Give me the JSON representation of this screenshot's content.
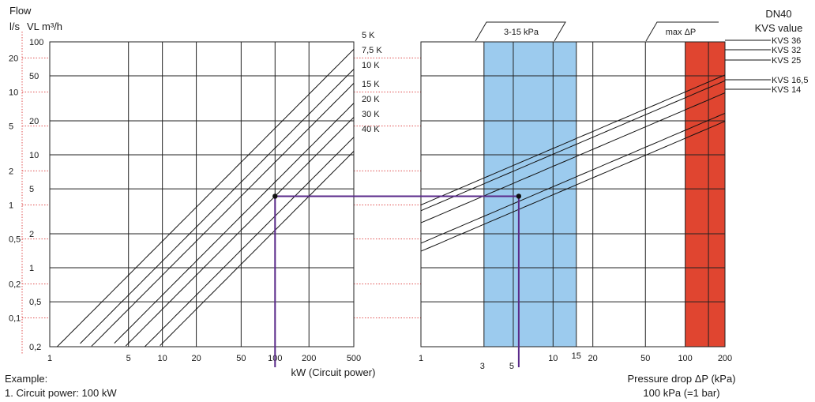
{
  "chart_data": {
    "type": "line",
    "flow_header": {
      "title": "Flow",
      "unit_ls": "l/s",
      "unit_vl": "VL m³/h"
    },
    "top_right": {
      "line1": "DN40",
      "line2": "KVS value"
    },
    "flow_axis": {
      "vl_ticks": [
        "100",
        "50",
        "20",
        "10",
        "5",
        "2",
        "1",
        "0,5",
        "0,2"
      ],
      "ls_ticks": [
        "20",
        "10",
        "5",
        "2",
        "1",
        "0,5",
        "0,2",
        "0,1"
      ],
      "vl_range_m3h": [
        0.2,
        100
      ]
    },
    "power_axis": {
      "xlabel": "kW (Circuit power)",
      "ticks": [
        "1",
        "5",
        "10",
        "20",
        "50",
        "100",
        "200",
        "500"
      ],
      "range_kw": [
        1,
        500
      ]
    },
    "pressure_axis": {
      "xlabel": "Pressure drop ΔP (kPa)",
      "xlabel2": "100 kPa (=1 bar)",
      "ticks_upper": [
        "1",
        "10",
        "20",
        "50",
        "100",
        "200"
      ],
      "ticks_lower": [
        "3",
        "5"
      ],
      "tick_15": "15",
      "range_kpa": [
        1,
        200
      ]
    },
    "dt_series": [
      {
        "name": "5 K",
        "dt": 5
      },
      {
        "name": "7,5 K",
        "dt": 7.5
      },
      {
        "name": "10 K",
        "dt": 10
      },
      {
        "name": "15 K",
        "dt": 15
      },
      {
        "name": "20 K",
        "dt": 20
      },
      {
        "name": "30 K",
        "dt": 30
      },
      {
        "name": "40 K",
        "dt": 40
      }
    ],
    "kvs_series": [
      {
        "name": "KVS 36",
        "kvs": 36
      },
      {
        "name": "KVS 32",
        "kvs": 32
      },
      {
        "name": "KVS 25",
        "kvs": 25
      },
      {
        "name": "KVS 16,5",
        "kvs": 16.5
      },
      {
        "name": "KVS 14",
        "kvs": 14
      }
    ],
    "zones": {
      "recommended": {
        "label": "3-15 kPa",
        "from_kpa": 3,
        "to_kpa": 15,
        "color": "#9ccbee"
      },
      "max": {
        "label": "max ΔP",
        "from_kpa": 100,
        "to_kpa": 200,
        "color": "#e04530"
      }
    },
    "example": {
      "line1": "Example:",
      "line2": "1. Circuit power: 100 kW",
      "power_kw": 100,
      "flow_m3h": 4.3,
      "pressure_kpa": 5.5
    },
    "colors": {
      "example_path": "#5a2a8a",
      "dotted": "#e05050",
      "grid": "#222222"
    }
  }
}
